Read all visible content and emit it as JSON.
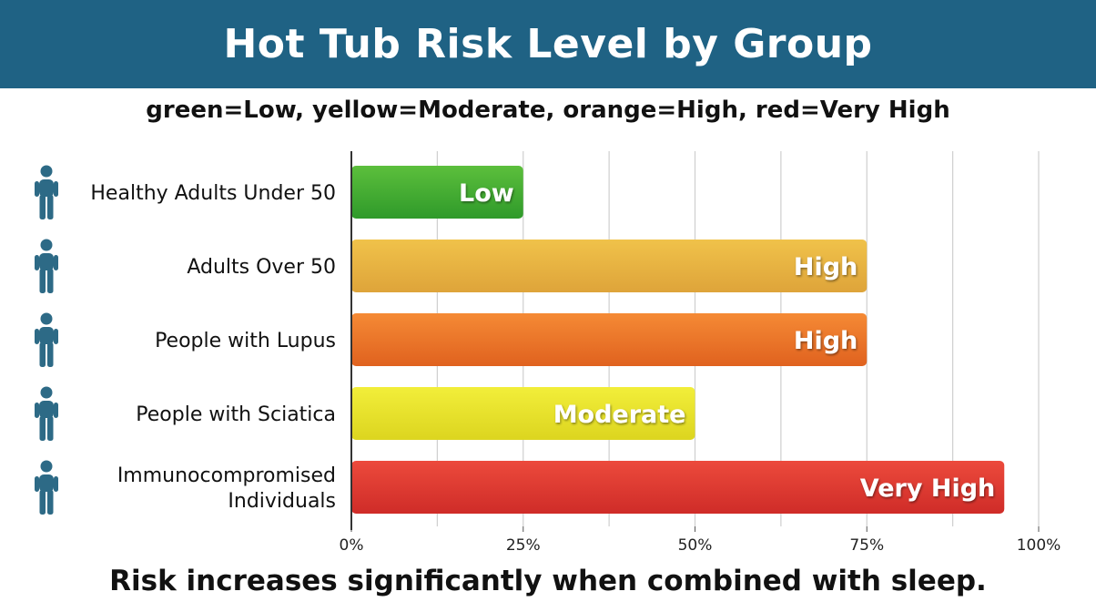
{
  "chart_data": {
    "type": "bar",
    "orientation": "horizontal",
    "title": "Hot Tub Risk Level by Group",
    "subtitle": "green=Low, yellow=Moderate, orange=High, red=Very High",
    "categories": [
      [
        "Healthy Adults Under 50"
      ],
      [
        "Adults Over 50"
      ],
      [
        "People with Lupus"
      ],
      [
        "People with Sciatica"
      ],
      [
        "Immunocompromised",
        "Individuals"
      ]
    ],
    "values": [
      25,
      75,
      75,
      50,
      95
    ],
    "data_labels": [
      "Low",
      "High",
      "High",
      "Moderate",
      "Very High"
    ],
    "bar_colors": [
      [
        "#5cbf3c",
        "#2f9a2a"
      ],
      [
        "#f0c24a",
        "#dea43a"
      ],
      [
        "#f58a35",
        "#e0621f"
      ],
      [
        "#f2ee3a",
        "#dcd51f"
      ],
      [
        "#ec4a3c",
        "#cf2c28"
      ]
    ],
    "icon_color": "#2d6a86",
    "xlim": [
      0,
      100
    ],
    "x_ticks": [
      0,
      25,
      50,
      75,
      100
    ],
    "x_tick_labels": [
      "0%",
      "25%",
      "50%",
      "75%",
      "100%"
    ],
    "grid": true,
    "footer": "Risk increases significantly when combined with sleep."
  }
}
